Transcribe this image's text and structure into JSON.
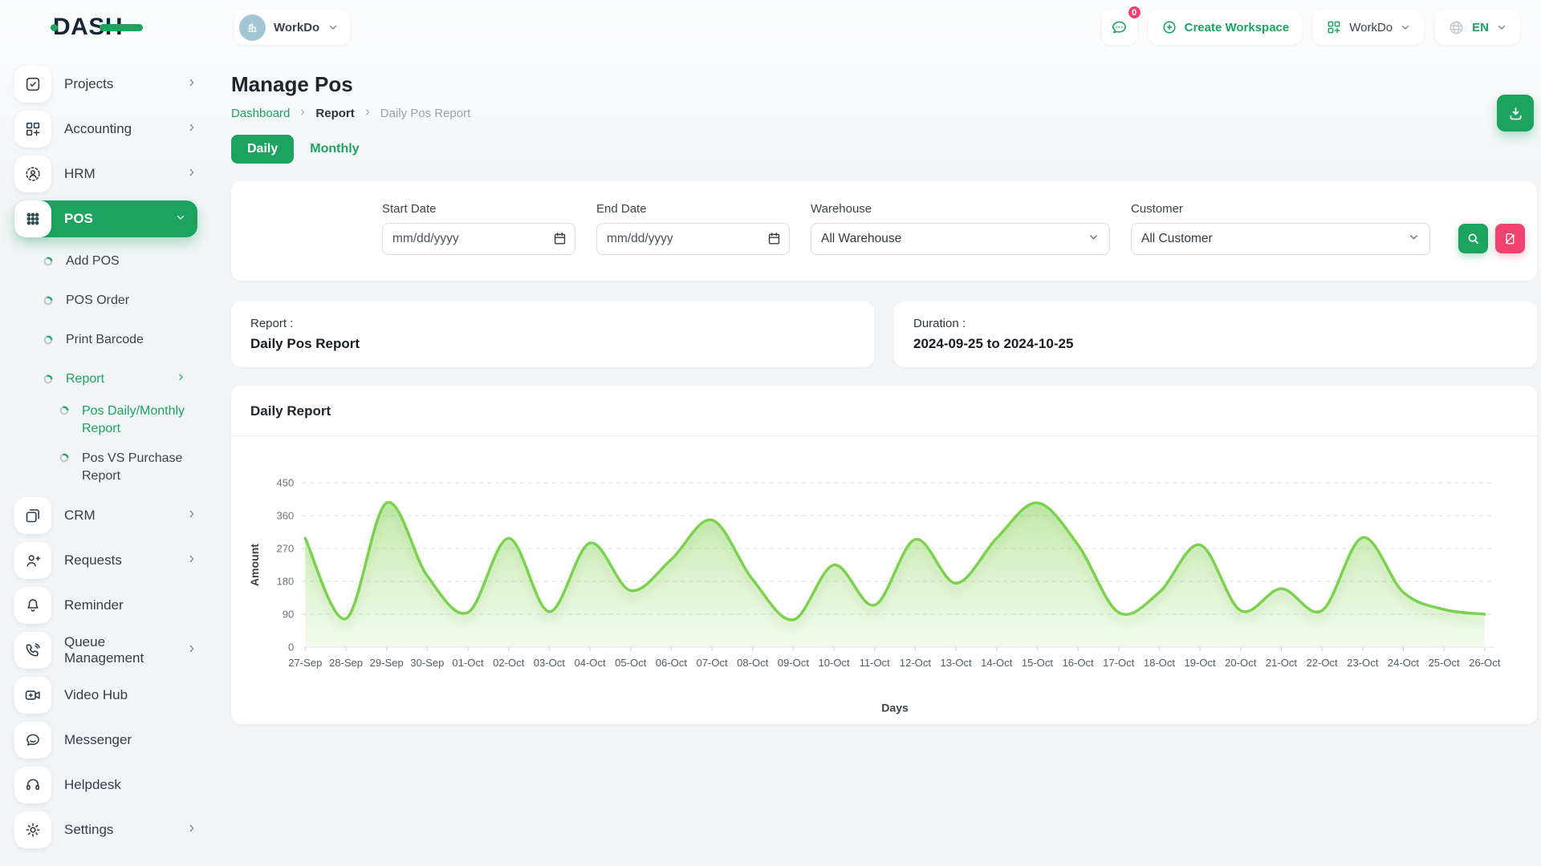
{
  "brand": {
    "name": "DASH"
  },
  "topbar": {
    "workspace": "WorkDo",
    "messages_badge": "0",
    "create_workspace": "Create Workspace",
    "workspace_menu": "WorkDo",
    "language": "EN"
  },
  "sidebar": {
    "items": [
      {
        "label": "Projects"
      },
      {
        "label": "Accounting"
      },
      {
        "label": "HRM"
      },
      {
        "label": "POS"
      },
      {
        "label": "Add POS"
      },
      {
        "label": "POS Order"
      },
      {
        "label": "Print Barcode"
      },
      {
        "label": "Report"
      },
      {
        "label": "Pos Daily/Monthly Report"
      },
      {
        "label": "Pos VS Purchase Report"
      },
      {
        "label": "CRM"
      },
      {
        "label": "Requests"
      },
      {
        "label": "Reminder"
      },
      {
        "label": "Queue Management"
      },
      {
        "label": "Video Hub"
      },
      {
        "label": "Messenger"
      },
      {
        "label": "Helpdesk"
      },
      {
        "label": "Settings"
      }
    ]
  },
  "page": {
    "title": "Manage Pos",
    "breadcrumb": {
      "home": "Dashboard",
      "section": "Report",
      "current": "Daily Pos Report"
    },
    "tabs": {
      "daily": "Daily",
      "monthly": "Monthly"
    }
  },
  "filters": {
    "start_date": {
      "label": "Start Date",
      "placeholder": "mm/dd/yyyy"
    },
    "end_date": {
      "label": "End Date",
      "placeholder": "mm/dd/yyyy"
    },
    "warehouse": {
      "label": "Warehouse",
      "value": "All Warehouse"
    },
    "customer": {
      "label": "Customer",
      "value": "All Customer"
    }
  },
  "summary": {
    "report_label": "Report :",
    "report_value": "Daily Pos Report",
    "duration_label": "Duration :",
    "duration_value": "2024-09-25 to 2024-10-25"
  },
  "chart_card": {
    "title": "Daily Report"
  },
  "chart_data": {
    "type": "area",
    "title": "Daily Report",
    "xlabel": "Days",
    "ylabel": "Amount",
    "ylim": [
      0,
      450
    ],
    "yticks": [
      0,
      90,
      180,
      270,
      360,
      450
    ],
    "grid": "horizontal-dashed",
    "legend": false,
    "line_color": "#7cd24f",
    "fill_style": "green-gradient",
    "categories": [
      "27-Sep",
      "28-Sep",
      "29-Sep",
      "30-Sep",
      "01-Oct",
      "02-Oct",
      "03-Oct",
      "04-Oct",
      "05-Oct",
      "06-Oct",
      "07-Oct",
      "08-Oct",
      "09-Oct",
      "10-Oct",
      "11-Oct",
      "12-Oct",
      "13-Oct",
      "14-Oct",
      "15-Oct",
      "16-Oct",
      "17-Oct",
      "18-Oct",
      "19-Oct",
      "20-Oct",
      "21-Oct",
      "22-Oct",
      "23-Oct",
      "24-Oct",
      "25-Oct",
      "26-Oct"
    ],
    "series": [
      {
        "name": "Amount",
        "values": [
          298,
          78,
          395,
          195,
          95,
          298,
          97,
          285,
          155,
          240,
          348,
          185,
          75,
          225,
          115,
          295,
          175,
          298,
          395,
          280,
          95,
          150,
          280,
          100,
          160,
          100,
          300,
          150,
          103,
          90
        ]
      }
    ]
  },
  "colors": {
    "accent": "#1ba35f",
    "danger": "#f0426e",
    "chart_line": "#7cd24f"
  }
}
